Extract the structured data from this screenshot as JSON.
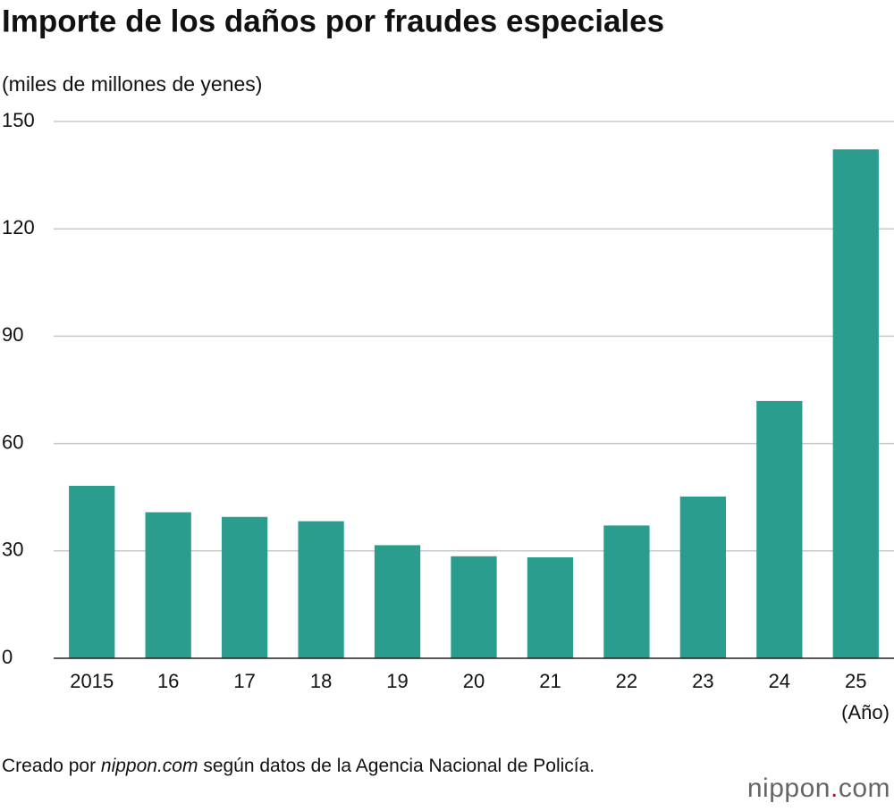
{
  "chart_data": {
    "type": "bar",
    "title": "Importe de los daños por fraudes especiales",
    "subtitle": "(miles de millones de yenes)",
    "x_label": "(Año)",
    "categories": [
      "2015",
      "16",
      "17",
      "18",
      "19",
      "20",
      "21",
      "22",
      "23",
      "24",
      "25"
    ],
    "values": [
      48.2,
      40.8,
      39.5,
      38.3,
      31.6,
      28.5,
      28.2,
      37.1,
      45.2,
      71.9,
      142.2
    ],
    "color": "#2a9d8f",
    "ylim": [
      0,
      150
    ],
    "yticks": [
      0,
      30,
      60,
      90,
      120,
      150
    ],
    "grid": true
  },
  "footer": {
    "source": [
      "Creado por ",
      "nippon.com",
      " según datos de la Agencia Nacional de Policía."
    ],
    "logo": [
      "nippon",
      ".",
      "com"
    ]
  }
}
